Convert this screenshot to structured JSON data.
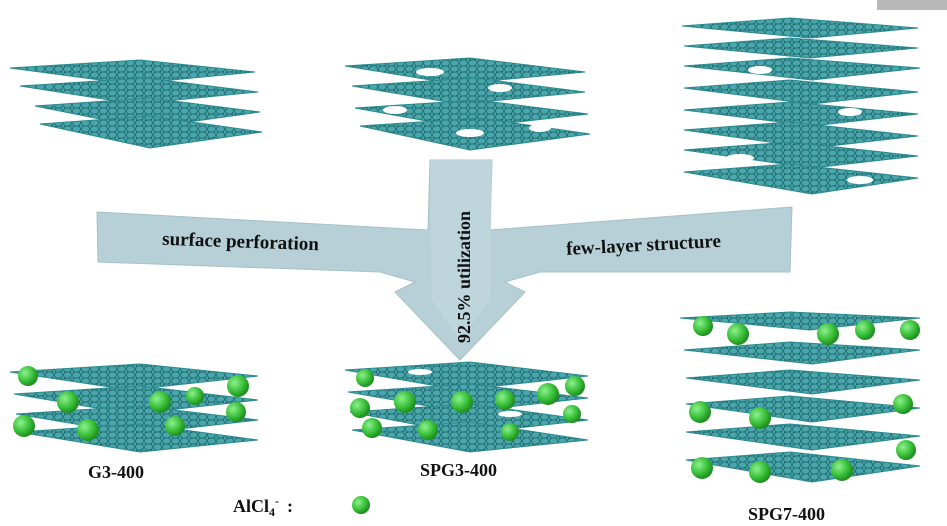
{
  "labels": {
    "arrow_left": "surface perforation",
    "arrow_right": "few-layer structure",
    "arrow_center": "92.5% utilization",
    "sample_g3": "G3-400",
    "sample_spg3": "SPG3-400",
    "sample_spg7": "SPG7-400",
    "legend_ion": "AlCl",
    "legend_ion_sub": "4",
    "legend_ion_sup": "-",
    "legend_colon": ":"
  },
  "colors": {
    "graphene_edge": "#2a8a8f",
    "graphene_fill": "#3e9ea3",
    "graphene_atom": "#1f6f74",
    "arrow_fill": "#b7cfd6",
    "ion": "#3cc23c",
    "ion_dark": "#1f8f1f"
  }
}
